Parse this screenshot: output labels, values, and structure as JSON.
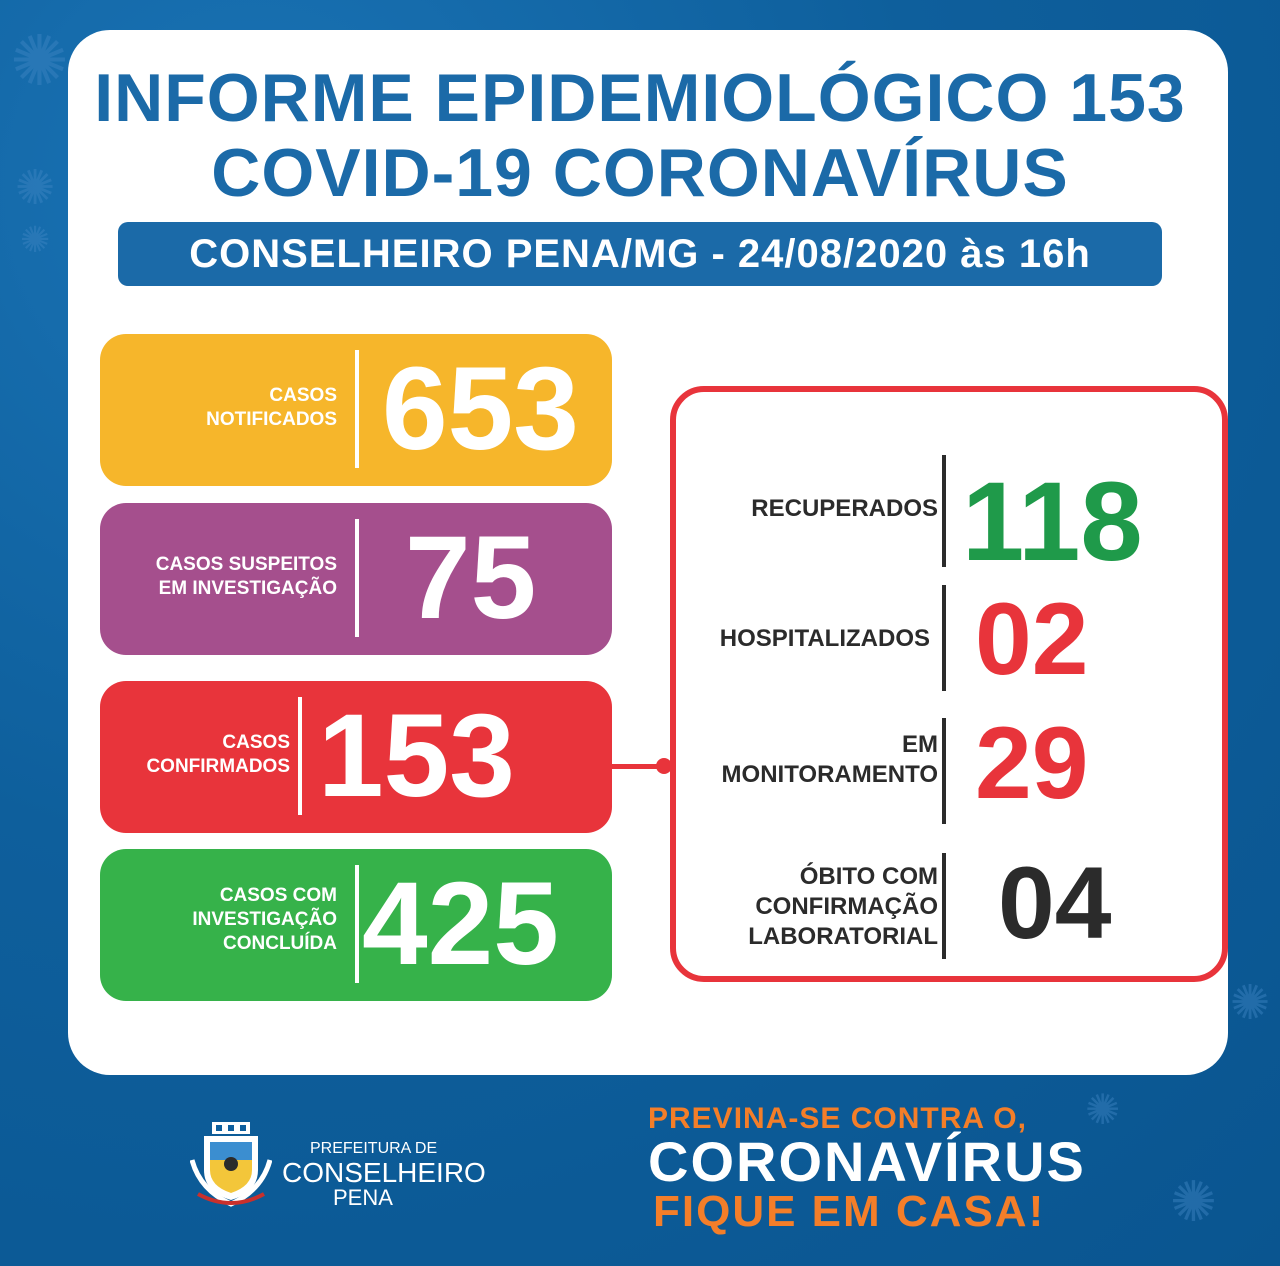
{
  "header": {
    "title_line1": "INFORME EPIDEMIOLÓGICO 153",
    "title_line2": "COVID-19 CORONAVÍRUS",
    "location_date": "CONSELHEIRO PENA/MG - 24/08/2020 às 16h"
  },
  "left_cards": [
    {
      "label": "CASOS\nNOTIFICADOS",
      "value": "653",
      "color": "#f6b62b"
    },
    {
      "label": "CASOS SUSPEITOS\nEM INVESTIGAÇÃO",
      "value": "75",
      "color": "#a54f8d"
    },
    {
      "label": "CASOS\nCONFIRMADOS",
      "value": "153",
      "color": "#e8343b"
    },
    {
      "label": "CASOS  COM\nINVESTIGAÇÃO\nCONCLUÍDA",
      "value": "425",
      "color": "#36b24a"
    }
  ],
  "right_items": [
    {
      "label": "RECUPERADOS",
      "value": "118",
      "color": "#1f9a4a"
    },
    {
      "label": "HOSPITALIZADOS",
      "value": "02",
      "color": "#e8343b"
    },
    {
      "label": "EM\nMONITORAMENTO",
      "value": "29",
      "color": "#e8343b"
    },
    {
      "label": "ÓBITO COM\nCONFIRMAÇÃO\nLABORATORIAL",
      "value": "04",
      "color": "#2b2b2b"
    }
  ],
  "footer": {
    "pref_line1": "PREFEITURA DE",
    "pref_line2": "CONSELHEIRO",
    "pref_line3": "PENA",
    "slogan_line1": "PREVINA-SE CONTRA O,",
    "slogan_line2": "CORONAVÍRUS",
    "slogan_line3": "FIQUE EM CASA!"
  },
  "colors": {
    "background": "#0d5f9e",
    "title_blue": "#1b6aa8",
    "accent_orange": "#f47e29"
  }
}
